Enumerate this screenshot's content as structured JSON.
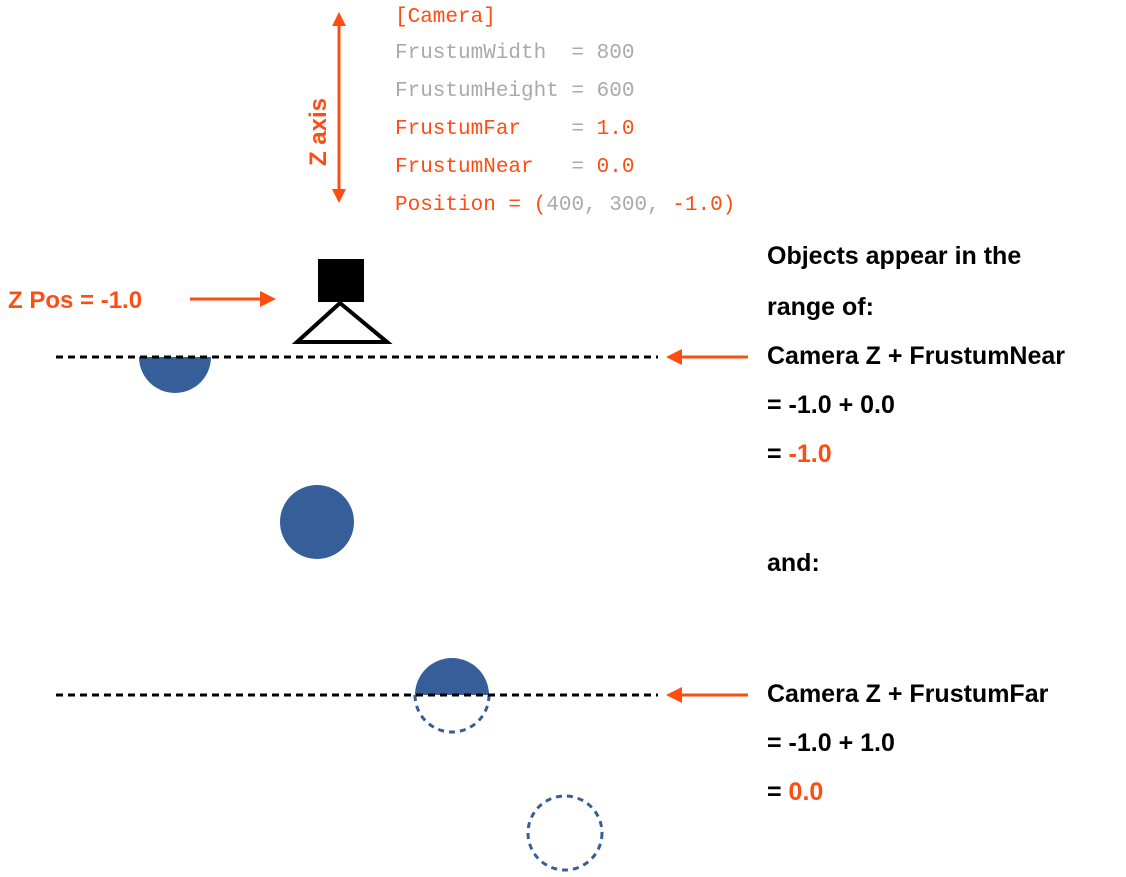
{
  "colors": {
    "accent": "#ff4d12",
    "muted": "#aaaaaa",
    "object_fill": "#365f9a",
    "ink": "#000000"
  },
  "axis": {
    "label": "Z axis"
  },
  "camera_config": {
    "header": "[Camera]",
    "width": {
      "key": "FrustumWidth ",
      "eq": " = ",
      "value": "800"
    },
    "height": {
      "key": "FrustumHeight",
      "eq": " = ",
      "value": "600"
    },
    "far": {
      "key": "FrustumFar   ",
      "eq": " = ",
      "value": "1.0"
    },
    "near": {
      "key": "FrustumNear  ",
      "eq": " = ",
      "value": "0.0"
    },
    "position": {
      "prefix": "Position = (",
      "x": "400",
      "sep1": ", ",
      "y": "300",
      "sep2": ", ",
      "z": "-1.0",
      "suffix": ")"
    }
  },
  "camera": {
    "zpos_label": "Z Pos = -1.0"
  },
  "explanation": {
    "intro_line1": "Objects appear in the",
    "intro_line2": "range of:",
    "near": {
      "line1": "Camera Z + FrustumNear",
      "line2": "= -1.0 + 0.0",
      "line3_prefix": "= ",
      "line3_value": "-1.0"
    },
    "and": "and:",
    "far": {
      "line1": "Camera Z + FrustumFar",
      "line2": "= -1.0 + 1.0",
      "line3_prefix": "= ",
      "line3_value": "0.0"
    }
  }
}
